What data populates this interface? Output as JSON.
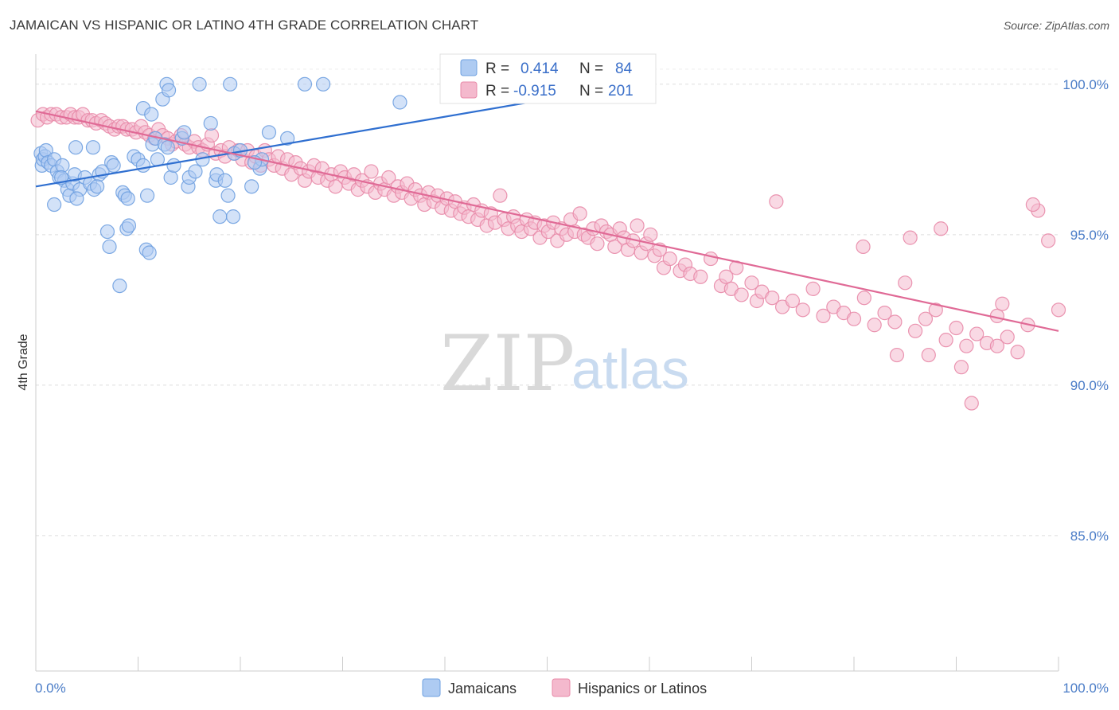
{
  "title": "JAMAICAN VS HISPANIC OR LATINO 4TH GRADE CORRELATION CHART",
  "source": "Source: ZipAtlas.com",
  "watermark": {
    "zip": "ZIP",
    "atlas": "atlas"
  },
  "colors": {
    "blue": "#6fa0e0",
    "blue_fill": "#aecbf2",
    "blue_line": "#2f6fd0",
    "pink": "#e889a8",
    "pink_fill": "#f4b9cd",
    "pink_line": "#e06a96",
    "tick_text": "#4a7cc7"
  },
  "legend": {
    "rows": [
      {
        "r_label": "R =",
        "r_value": "0.414",
        "n_label": "N =",
        "n_value": "84"
      },
      {
        "r_label": "R =",
        "r_value": "-0.915",
        "n_label": "N =",
        "n_value": "201"
      }
    ]
  },
  "bottom_legend": [
    "Jamaicans",
    "Hispanics or Latinos"
  ],
  "chart_data": {
    "type": "scatter",
    "title": "JAMAICAN VS HISPANIC OR LATINO 4TH GRADE CORRELATION CHART",
    "xlabel": "",
    "ylabel": "4th Grade",
    "xlim": [
      0,
      100
    ],
    "ylim": [
      80.5,
      101.0
    ],
    "x_tick_labels": [
      "0.0%",
      "100.0%"
    ],
    "y_ticks": [
      85,
      90,
      95,
      100
    ],
    "y_tick_labels": [
      "85.0%",
      "90.0%",
      "95.0%",
      "100.0%"
    ],
    "grid": "horizontal dashed",
    "legend_position": "top-center",
    "series": [
      {
        "name": "Jamaicans",
        "R": 0.414,
        "N": 84,
        "trend": {
          "x": [
            0,
            50
          ],
          "y": [
            96.6,
            99.5
          ]
        },
        "points": [
          [
            0.5,
            97.7
          ],
          [
            0.6,
            97.3
          ],
          [
            0.7,
            97.5
          ],
          [
            0.9,
            97.6
          ],
          [
            1.0,
            97.8
          ],
          [
            1.2,
            97.4
          ],
          [
            1.5,
            97.3
          ],
          [
            1.8,
            97.5
          ],
          [
            2.1,
            97.1
          ],
          [
            2.3,
            96.9
          ],
          [
            2.6,
            97.3
          ],
          [
            2.8,
            96.8
          ],
          [
            3.1,
            96.5
          ],
          [
            3.3,
            96.3
          ],
          [
            3.6,
            96.7
          ],
          [
            3.8,
            97.0
          ],
          [
            4.3,
            96.5
          ],
          [
            4.8,
            96.9
          ],
          [
            5.3,
            96.7
          ],
          [
            5.7,
            96.5
          ],
          [
            6.2,
            97.0
          ],
          [
            6.5,
            97.1
          ],
          [
            7.4,
            97.4
          ],
          [
            7.6,
            97.3
          ],
          [
            1.8,
            96.0
          ],
          [
            3.9,
            97.9
          ],
          [
            5.6,
            97.9
          ],
          [
            7.0,
            95.1
          ],
          [
            7.2,
            94.6
          ],
          [
            8.5,
            96.4
          ],
          [
            8.7,
            96.3
          ],
          [
            8.9,
            95.2
          ],
          [
            9.1,
            95.3
          ],
          [
            9.6,
            97.6
          ],
          [
            10.0,
            97.5
          ],
          [
            10.5,
            97.3
          ],
          [
            10.9,
            96.3
          ],
          [
            11.4,
            98.0
          ],
          [
            11.7,
            98.2
          ],
          [
            11.9,
            97.5
          ],
          [
            12.6,
            98.0
          ],
          [
            12.9,
            97.9
          ],
          [
            13.2,
            96.9
          ],
          [
            13.5,
            97.3
          ],
          [
            10.5,
            99.2
          ],
          [
            11.3,
            99.0
          ],
          [
            12.4,
            99.5
          ],
          [
            12.8,
            100.0
          ],
          [
            13.0,
            99.8
          ],
          [
            14.3,
            98.2
          ],
          [
            14.5,
            98.4
          ],
          [
            14.9,
            96.6
          ],
          [
            15.0,
            96.9
          ],
          [
            15.6,
            97.1
          ],
          [
            16.3,
            97.5
          ],
          [
            17.1,
            98.7
          ],
          [
            17.6,
            96.8
          ],
          [
            17.7,
            97.0
          ],
          [
            18.5,
            96.8
          ],
          [
            18.8,
            96.3
          ],
          [
            19.3,
            95.6
          ],
          [
            19.4,
            97.7
          ],
          [
            20.0,
            97.8
          ],
          [
            21.1,
            96.6
          ],
          [
            21.9,
            97.2
          ],
          [
            22.1,
            97.5
          ],
          [
            21.4,
            97.4
          ],
          [
            22.8,
            98.4
          ],
          [
            24.6,
            98.2
          ],
          [
            8.2,
            93.3
          ],
          [
            10.8,
            94.5
          ],
          [
            11.1,
            94.4
          ],
          [
            16.0,
            100.0
          ],
          [
            19.0,
            100.0
          ],
          [
            26.3,
            100.0
          ],
          [
            28.1,
            100.0
          ],
          [
            35.6,
            99.4
          ],
          [
            45.0,
            100.0
          ],
          [
            48.0,
            99.8
          ],
          [
            18.0,
            95.6
          ],
          [
            9.0,
            96.2
          ],
          [
            6.0,
            96.6
          ],
          [
            2.5,
            96.9
          ],
          [
            4.0,
            96.2
          ]
        ]
      },
      {
        "name": "Hispanics or Latinos",
        "R": -0.915,
        "N": 201,
        "trend": {
          "x": [
            0,
            100
          ],
          "y": [
            99.1,
            91.8
          ]
        },
        "points": [
          [
            0.2,
            98.8
          ],
          [
            0.7,
            99.0
          ],
          [
            1.1,
            98.9
          ],
          [
            1.5,
            99.0
          ],
          [
            2.0,
            99.0
          ],
          [
            2.5,
            98.9
          ],
          [
            3.0,
            98.9
          ],
          [
            3.4,
            99.0
          ],
          [
            3.8,
            98.9
          ],
          [
            4.2,
            98.9
          ],
          [
            4.6,
            99.0
          ],
          [
            5.1,
            98.8
          ],
          [
            5.5,
            98.8
          ],
          [
            5.9,
            98.7
          ],
          [
            6.4,
            98.8
          ],
          [
            6.8,
            98.7
          ],
          [
            7.2,
            98.6
          ],
          [
            7.7,
            98.5
          ],
          [
            8.1,
            98.6
          ],
          [
            8.5,
            98.6
          ],
          [
            8.9,
            98.5
          ],
          [
            9.4,
            98.5
          ],
          [
            9.8,
            98.4
          ],
          [
            10.3,
            98.6
          ],
          [
            10.7,
            98.4
          ],
          [
            11.1,
            98.3
          ],
          [
            11.6,
            98.2
          ],
          [
            12.0,
            98.5
          ],
          [
            12.4,
            98.3
          ],
          [
            12.9,
            98.2
          ],
          [
            13.3,
            98.0
          ],
          [
            13.7,
            98.1
          ],
          [
            14.2,
            98.3
          ],
          [
            14.6,
            98.0
          ],
          [
            15.0,
            97.9
          ],
          [
            15.5,
            98.1
          ],
          [
            15.9,
            97.9
          ],
          [
            16.3,
            97.8
          ],
          [
            16.8,
            98.0
          ],
          [
            17.2,
            98.3
          ],
          [
            17.6,
            97.7
          ],
          [
            18.1,
            97.8
          ],
          [
            18.5,
            97.6
          ],
          [
            18.9,
            97.9
          ],
          [
            19.4,
            97.7
          ],
          [
            19.8,
            97.8
          ],
          [
            20.2,
            97.5
          ],
          [
            20.7,
            97.8
          ],
          [
            21.1,
            97.4
          ],
          [
            21.5,
            97.6
          ],
          [
            22.0,
            97.3
          ],
          [
            22.4,
            97.8
          ],
          [
            22.8,
            97.5
          ],
          [
            23.3,
            97.3
          ],
          [
            23.7,
            97.6
          ],
          [
            24.1,
            97.2
          ],
          [
            24.6,
            97.5
          ],
          [
            25.0,
            97.0
          ],
          [
            25.4,
            97.4
          ],
          [
            25.9,
            97.2
          ],
          [
            26.3,
            96.8
          ],
          [
            26.7,
            97.1
          ],
          [
            27.2,
            97.3
          ],
          [
            27.6,
            96.9
          ],
          [
            28.0,
            97.2
          ],
          [
            28.5,
            96.8
          ],
          [
            28.9,
            97.0
          ],
          [
            29.3,
            96.6
          ],
          [
            29.8,
            97.1
          ],
          [
            30.2,
            96.9
          ],
          [
            30.6,
            96.7
          ],
          [
            31.1,
            97.0
          ],
          [
            31.5,
            96.5
          ],
          [
            31.9,
            96.8
          ],
          [
            32.4,
            96.6
          ],
          [
            32.8,
            97.1
          ],
          [
            33.2,
            96.4
          ],
          [
            33.7,
            96.7
          ],
          [
            34.1,
            96.5
          ],
          [
            34.5,
            96.9
          ],
          [
            35.0,
            96.3
          ],
          [
            35.4,
            96.6
          ],
          [
            35.8,
            96.4
          ],
          [
            36.3,
            96.7
          ],
          [
            36.7,
            96.2
          ],
          [
            37.1,
            96.5
          ],
          [
            37.6,
            96.3
          ],
          [
            38.0,
            96.0
          ],
          [
            38.4,
            96.4
          ],
          [
            38.9,
            96.1
          ],
          [
            39.3,
            96.3
          ],
          [
            39.7,
            95.9
          ],
          [
            40.2,
            96.2
          ],
          [
            40.6,
            95.8
          ],
          [
            41.0,
            96.1
          ],
          [
            41.5,
            95.7
          ],
          [
            41.9,
            95.9
          ],
          [
            42.3,
            95.6
          ],
          [
            42.8,
            96.0
          ],
          [
            43.2,
            95.5
          ],
          [
            43.6,
            95.8
          ],
          [
            44.1,
            95.3
          ],
          [
            44.5,
            95.7
          ],
          [
            44.9,
            95.4
          ],
          [
            45.4,
            96.3
          ],
          [
            45.8,
            95.5
          ],
          [
            46.2,
            95.2
          ],
          [
            46.7,
            95.6
          ],
          [
            47.1,
            95.3
          ],
          [
            47.5,
            95.1
          ],
          [
            48.0,
            95.5
          ],
          [
            48.4,
            95.2
          ],
          [
            48.8,
            95.4
          ],
          [
            49.3,
            94.9
          ],
          [
            49.7,
            95.3
          ],
          [
            50.1,
            95.1
          ],
          [
            50.6,
            95.4
          ],
          [
            51.0,
            94.8
          ],
          [
            51.4,
            95.2
          ],
          [
            51.9,
            95.0
          ],
          [
            52.3,
            95.5
          ],
          [
            52.7,
            95.1
          ],
          [
            53.2,
            95.7
          ],
          [
            53.6,
            95.0
          ],
          [
            54.0,
            94.9
          ],
          [
            54.5,
            95.2
          ],
          [
            54.9,
            94.7
          ],
          [
            55.3,
            95.3
          ],
          [
            55.8,
            95.1
          ],
          [
            56.2,
            95.0
          ],
          [
            56.6,
            94.6
          ],
          [
            57.1,
            95.2
          ],
          [
            57.5,
            94.9
          ],
          [
            57.9,
            94.5
          ],
          [
            58.4,
            94.8
          ],
          [
            58.8,
            95.3
          ],
          [
            59.2,
            94.4
          ],
          [
            59.7,
            94.7
          ],
          [
            60.1,
            95.0
          ],
          [
            60.5,
            94.3
          ],
          [
            61.0,
            94.5
          ],
          [
            61.4,
            93.9
          ],
          [
            62.0,
            94.2
          ],
          [
            63.0,
            93.8
          ],
          [
            63.5,
            94.0
          ],
          [
            64.0,
            93.7
          ],
          [
            65.0,
            93.6
          ],
          [
            66.0,
            94.2
          ],
          [
            67.0,
            93.3
          ],
          [
            67.5,
            93.6
          ],
          [
            68.0,
            93.2
          ],
          [
            68.5,
            93.9
          ],
          [
            69.0,
            93.0
          ],
          [
            70.0,
            93.4
          ],
          [
            70.5,
            92.8
          ],
          [
            71.0,
            93.1
          ],
          [
            72.0,
            92.9
          ],
          [
            73.0,
            92.6
          ],
          [
            74.0,
            92.8
          ],
          [
            75.0,
            92.5
          ],
          [
            76.0,
            93.2
          ],
          [
            77.0,
            92.3
          ],
          [
            78.0,
            92.6
          ],
          [
            79.0,
            92.4
          ],
          [
            80.0,
            92.2
          ],
          [
            81.0,
            92.9
          ],
          [
            82.0,
            92.0
          ],
          [
            83.0,
            92.4
          ],
          [
            84.0,
            92.1
          ],
          [
            85.0,
            93.4
          ],
          [
            86.0,
            91.8
          ],
          [
            87.0,
            92.2
          ],
          [
            88.0,
            92.5
          ],
          [
            89.0,
            91.5
          ],
          [
            90.0,
            91.9
          ],
          [
            91.0,
            91.3
          ],
          [
            92.0,
            91.7
          ],
          [
            93.0,
            91.4
          ],
          [
            94.0,
            92.3
          ],
          [
            95.0,
            91.6
          ],
          [
            96.0,
            91.1
          ],
          [
            97.0,
            92.0
          ],
          [
            98.0,
            95.8
          ],
          [
            99.0,
            94.8
          ],
          [
            100.0,
            92.5
          ],
          [
            94.5,
            92.7
          ],
          [
            91.5,
            89.4
          ],
          [
            90.5,
            90.6
          ],
          [
            84.2,
            91.0
          ],
          [
            87.3,
            91.0
          ],
          [
            97.5,
            96.0
          ],
          [
            72.4,
            96.1
          ],
          [
            80.9,
            94.6
          ],
          [
            85.5,
            94.9
          ],
          [
            88.5,
            95.2
          ],
          [
            94.0,
            91.3
          ]
        ]
      }
    ]
  }
}
